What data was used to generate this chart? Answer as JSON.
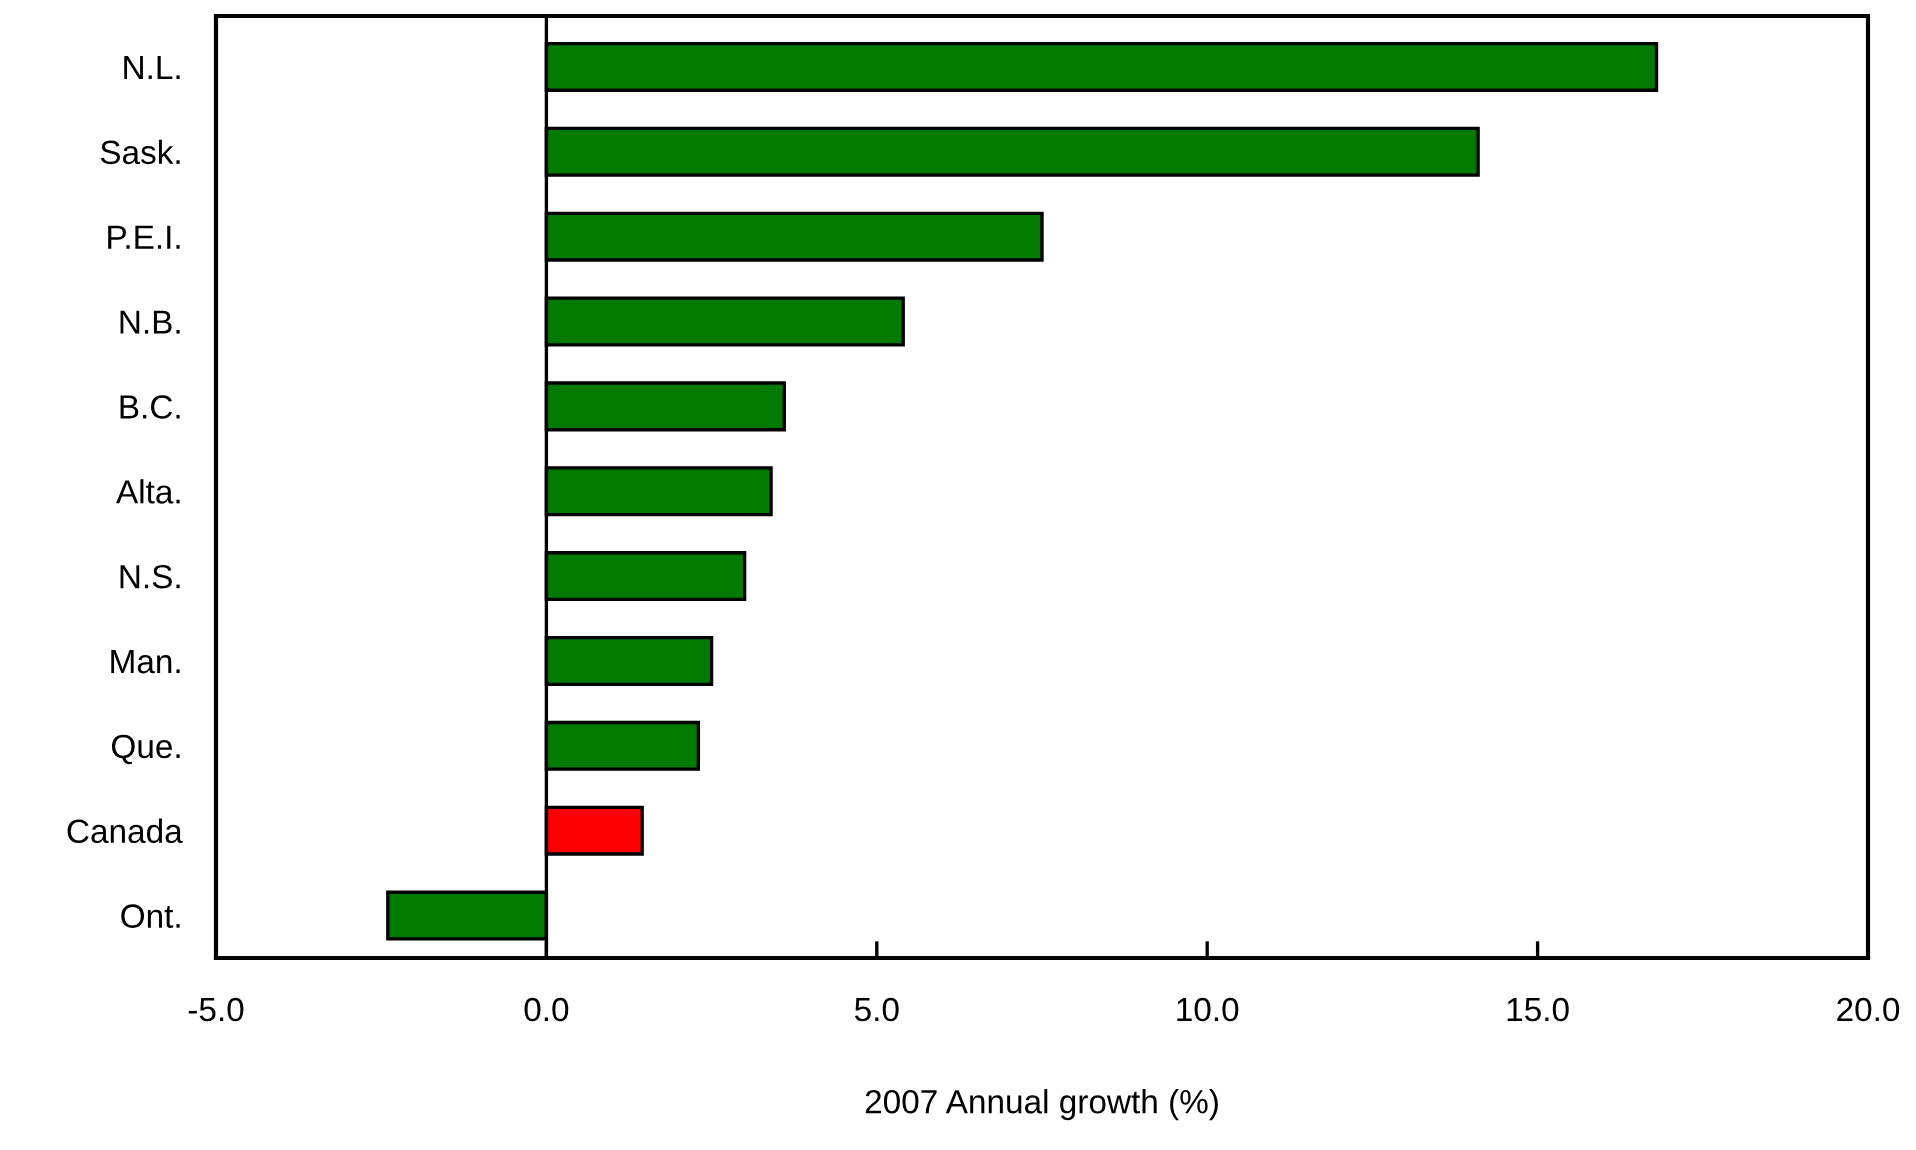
{
  "chart_data": {
    "type": "bar",
    "orientation": "horizontal",
    "xlabel": "2007 Annual growth (%)",
    "categories": [
      "N.L.",
      "Sask.",
      "P.E.I.",
      "N.B.",
      "B.C.",
      "Alta.",
      "N.S.",
      "Man.",
      "Que.",
      "Canada",
      "Ont."
    ],
    "values": [
      16.8,
      14.1,
      7.5,
      5.4,
      3.6,
      3.4,
      3.0,
      2.5,
      2.3,
      1.45,
      -2.4
    ],
    "colors": [
      "#007a00",
      "#007a00",
      "#007a00",
      "#007a00",
      "#007a00",
      "#007a00",
      "#007a00",
      "#007a00",
      "#007a00",
      "#ff0000",
      "#007a00"
    ],
    "xlim": [
      -5,
      20
    ],
    "xticks": [
      {
        "value": -5,
        "label": "-5.0"
      },
      {
        "value": 0,
        "label": "0.0"
      },
      {
        "value": 5,
        "label": "5.0"
      },
      {
        "value": 10,
        "label": "10.0"
      },
      {
        "value": 15,
        "label": "15.0"
      },
      {
        "value": 20,
        "label": "20.0"
      }
    ],
    "ref_lines": [
      {
        "axis": "x",
        "value": 0,
        "color": "#000000"
      }
    ],
    "legend": false
  }
}
